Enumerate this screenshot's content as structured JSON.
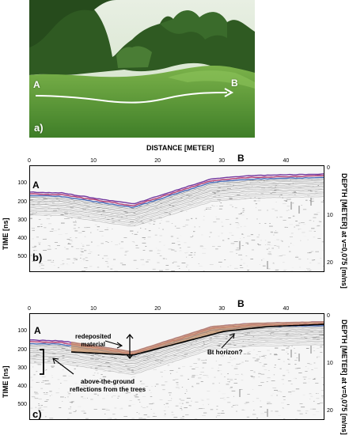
{
  "photo": {
    "label_a": "A",
    "label_b": "B",
    "panel_label": "a)"
  },
  "figure": {
    "x_axis_title": "DISTANCE [METER]",
    "time_axis_title": "TIME [ns]",
    "depth_axis_title": "DEPTH [METER] at v=0,075 [m/ns]",
    "x_ticks": [
      "0",
      "10",
      "20",
      "30",
      "40"
    ],
    "time_ticks": [
      "100",
      "200",
      "300",
      "400",
      "500"
    ],
    "depth_ticks": [
      "0",
      "10",
      "20"
    ],
    "marker_a": "A",
    "marker_b": "B"
  },
  "panel_b": {
    "label": "b)"
  },
  "panel_c": {
    "label": "c)",
    "annotation_redeposited_line1": "redeposited",
    "annotation_redeposited_line2": "material",
    "annotation_bt": "Bt horizon?",
    "annotation_trees_line1": "above-the-ground",
    "annotation_trees_line2": "reflections from the trees"
  },
  "colors": {
    "grass": "#5f9b3c",
    "forest": "#2f5a22",
    "sky": "#dfe9d8",
    "redeposited_fill": "#c9956c",
    "reflection_purple": "#6a2c9a"
  }
}
